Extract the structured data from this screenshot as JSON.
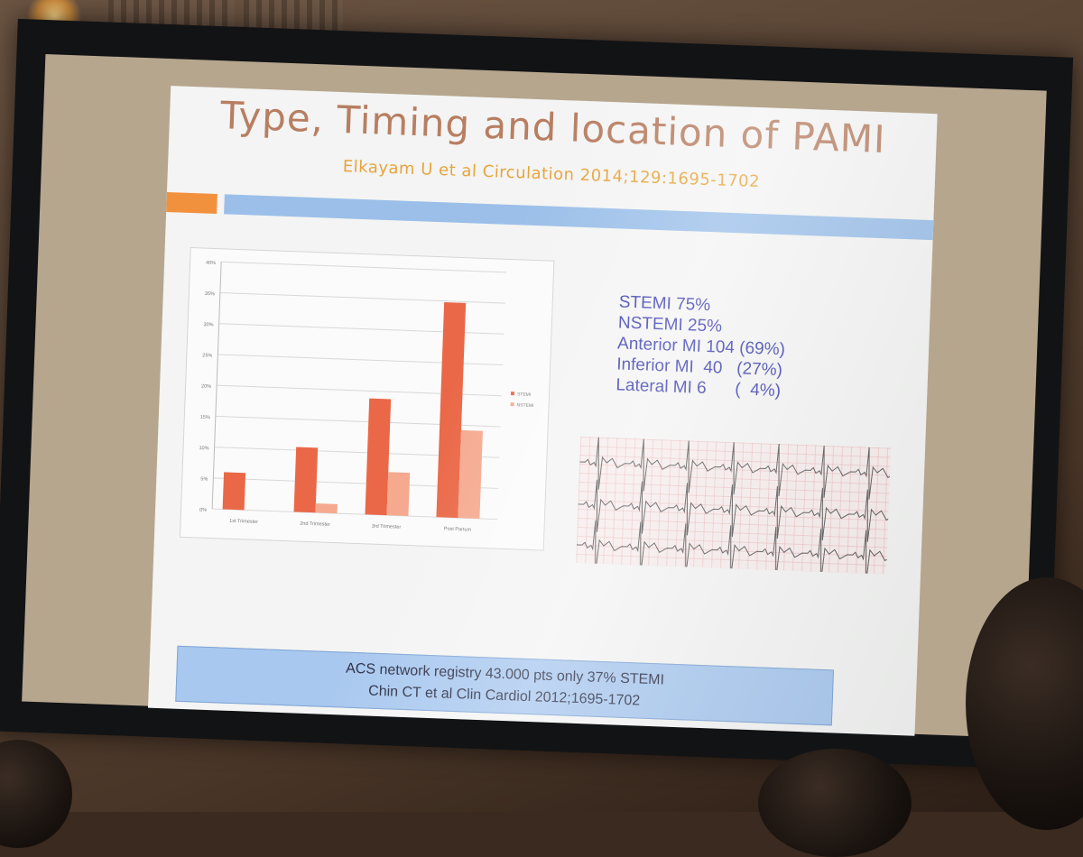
{
  "slide": {
    "title": "Type, Timing and location of PAMI",
    "subtitle": "Elkayam U et al Circulation 2014;129:1695-1702"
  },
  "stats": [
    "STEMI 75%",
    "NSTEMI 25%",
    "Anterior MI 104 (69%)",
    "Inferior MI  40   (27%)",
    "Lateral MI 6      (  4%)"
  ],
  "footer": {
    "line1": "ACS network registry 43.000 pts only 37% STEMI",
    "line2": "Chin CT et al Clin Cardiol 2012;1695-1702"
  },
  "colors": {
    "stemi": "#ea6847",
    "nstemi": "#f5a98f",
    "title": "#b87e62",
    "subtitle": "#e7a43c",
    "stats": "#3c3fb0"
  },
  "chart_data": {
    "type": "bar",
    "categories": [
      "1st Trimester",
      "2nd Trimester",
      "3rd Trimester",
      "Post Partum"
    ],
    "series": [
      {
        "name": "STEMI",
        "values": [
          6,
          10.5,
          18.8,
          34.8
        ]
      },
      {
        "name": "NSTEMI",
        "values": [
          0,
          1.5,
          7,
          14.2
        ]
      }
    ],
    "yticks": [
      "0%",
      "5%",
      "10%",
      "15%",
      "20%",
      "25%",
      "30%",
      "35%",
      "40%"
    ],
    "ylim": [
      0,
      40
    ],
    "grid": true,
    "legend_position": "right"
  }
}
